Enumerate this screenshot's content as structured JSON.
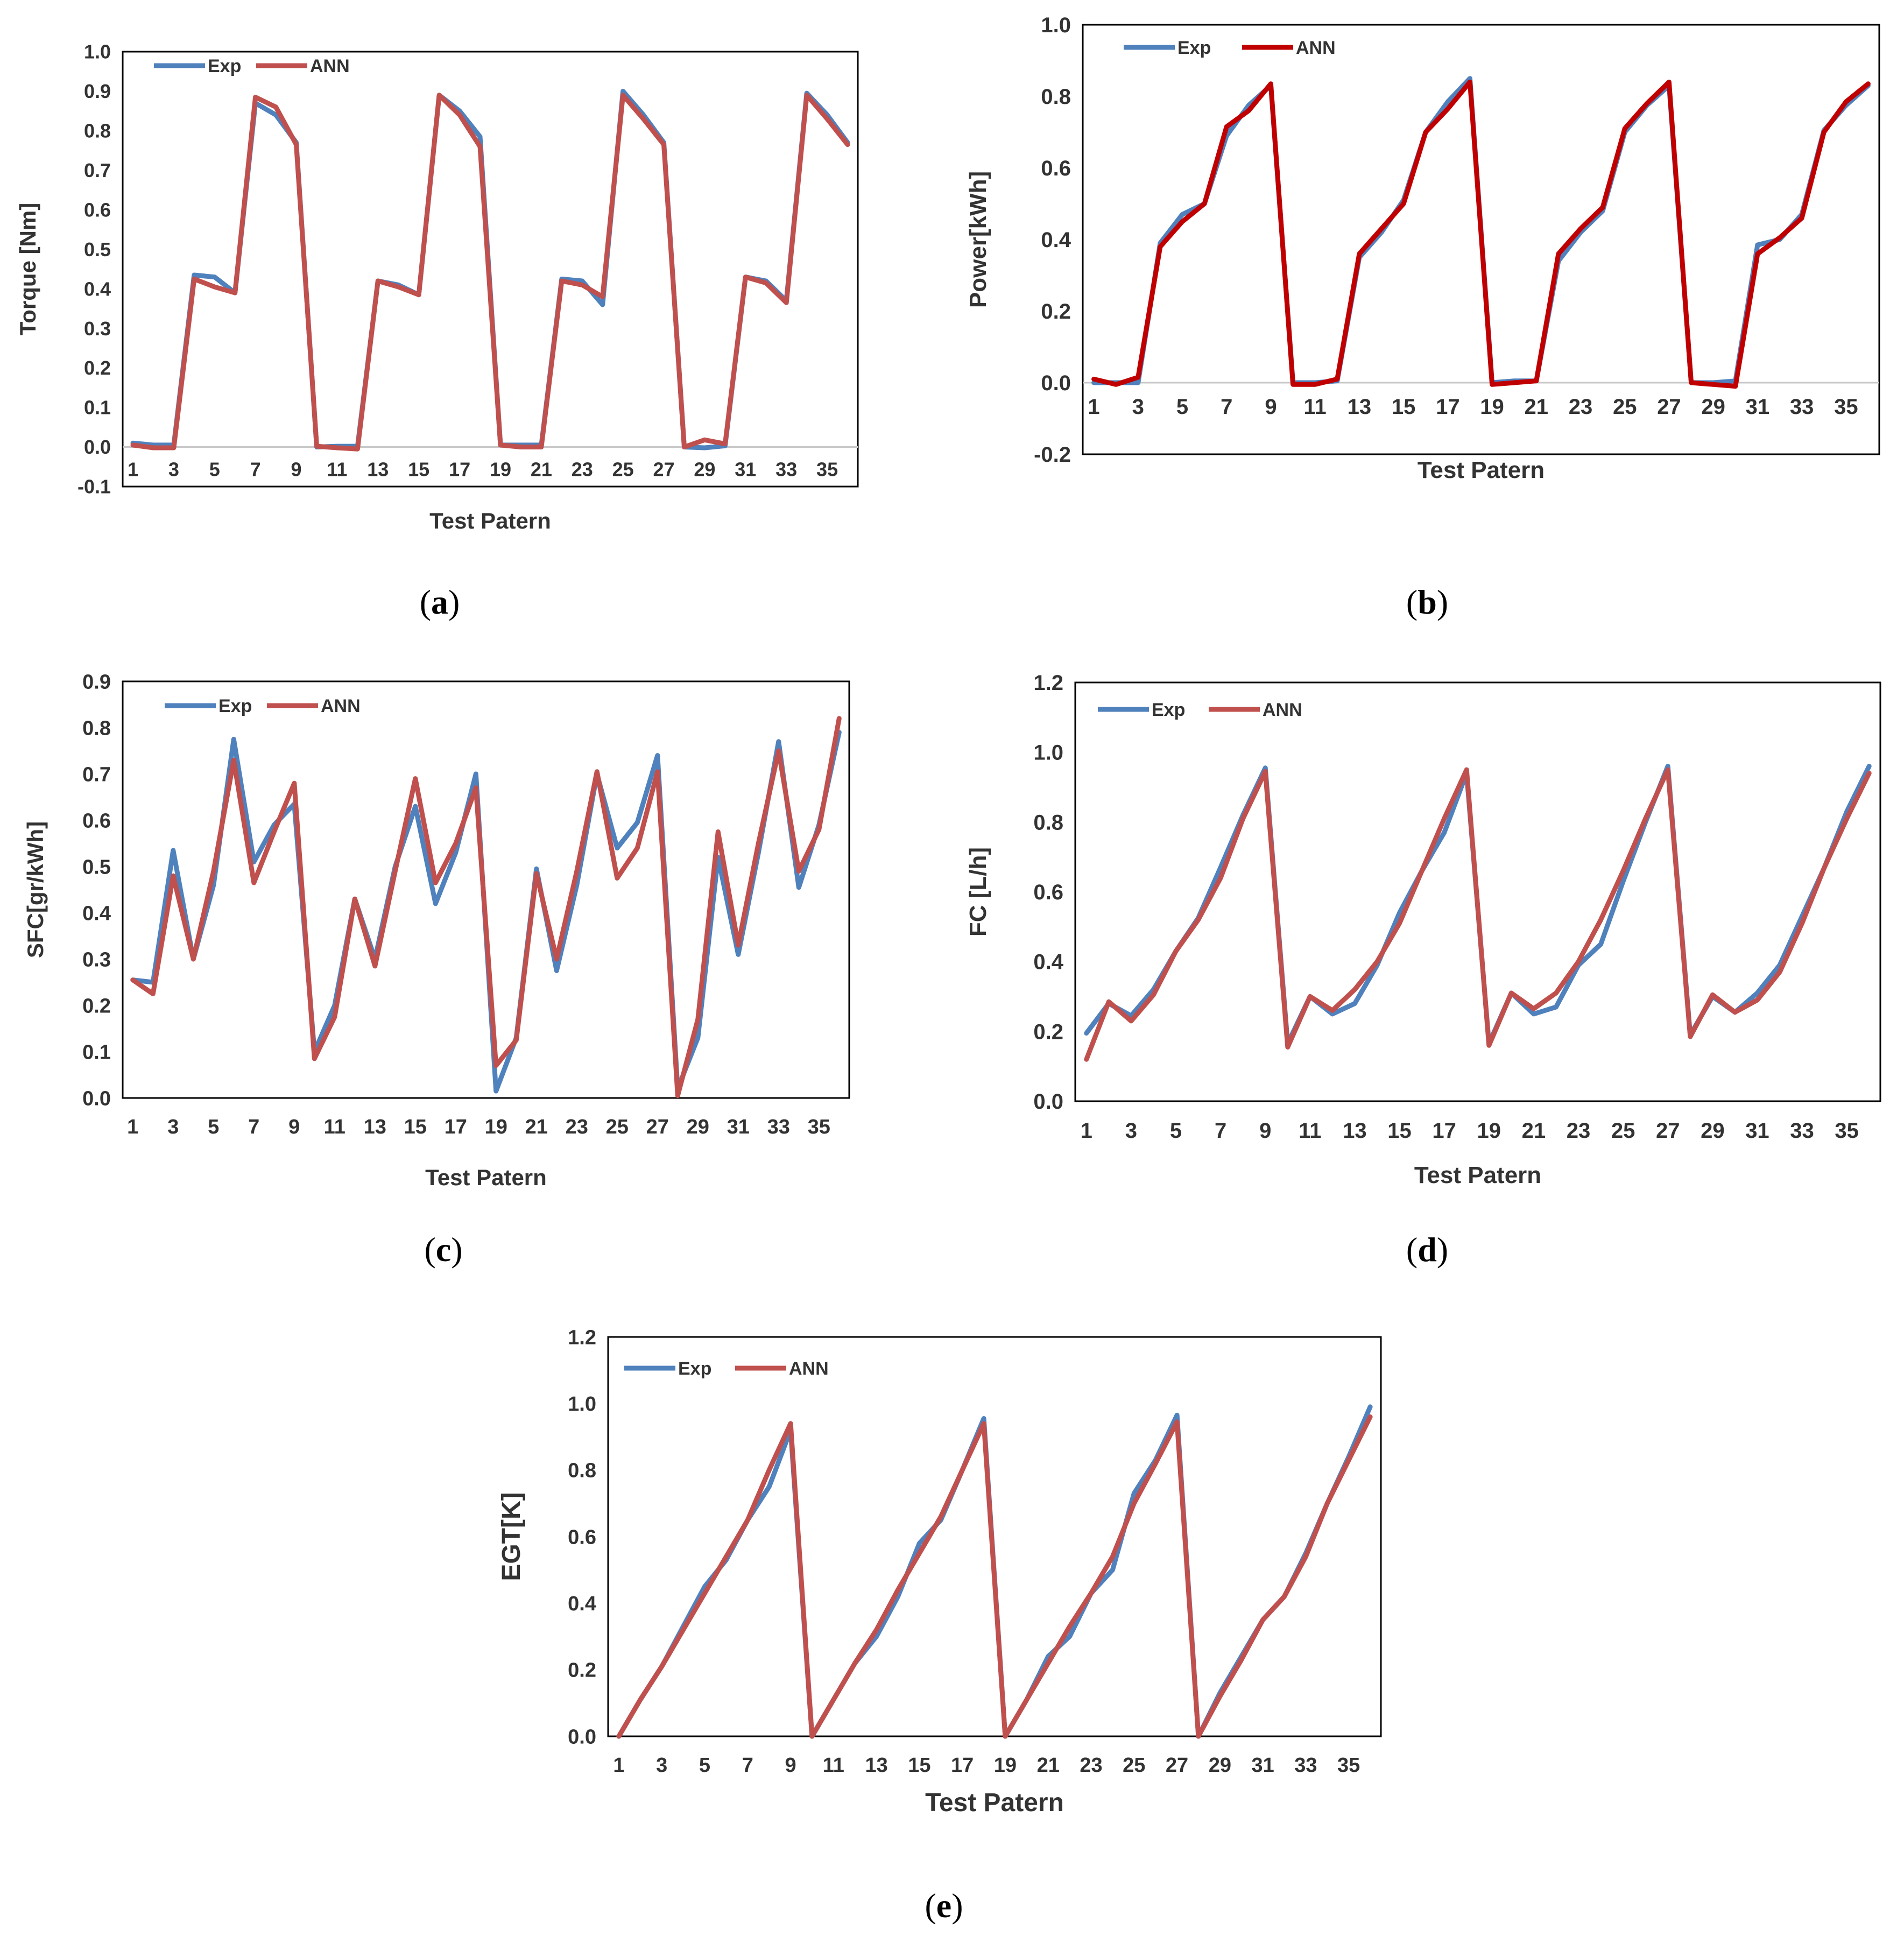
{
  "figure": {
    "x_values": [
      1,
      2,
      3,
      4,
      5,
      6,
      7,
      8,
      9,
      10,
      11,
      12,
      13,
      14,
      15,
      16,
      17,
      18,
      19,
      20,
      21,
      22,
      23,
      24,
      25,
      26,
      27,
      28,
      29,
      30,
      31,
      32,
      33,
      34,
      35,
      36
    ]
  },
  "chart_data": [
    {
      "id": "a",
      "type": "line",
      "panel_label": "(a)",
      "title": "",
      "xlabel": "Test Patern",
      "ylabel": "Torque [Nm]",
      "ylim": [
        -0.1,
        1.0
      ],
      "yticks": [
        "-0.1",
        "0.0",
        "0.1",
        "0.2",
        "0.3",
        "0.4",
        "0.5",
        "0.6",
        "0.7",
        "0.8",
        "0.9",
        "1.0"
      ],
      "xticks": [
        "1",
        "3",
        "5",
        "7",
        "9",
        "11",
        "13",
        "15",
        "17",
        "19",
        "21",
        "23",
        "25",
        "27",
        "29",
        "31",
        "33",
        "35"
      ],
      "legend": [
        "Exp",
        "ANN"
      ],
      "series": [
        {
          "name": "Exp",
          "color": "#4F81BD",
          "values": [
            0.01,
            0.005,
            0.005,
            0.435,
            0.43,
            0.39,
            0.87,
            0.84,
            0.77,
            0.0,
            0.002,
            0.002,
            0.42,
            0.41,
            0.385,
            0.89,
            0.85,
            0.785,
            0.005,
            0.005,
            0.005,
            0.425,
            0.42,
            0.36,
            0.9,
            0.84,
            0.77,
            0.0,
            -0.002,
            0.003,
            0.43,
            0.42,
            0.37,
            0.895,
            0.84,
            0.77
          ]
        },
        {
          "name": "ANN",
          "color": "#C0504D",
          "values": [
            0.005,
            -0.002,
            -0.002,
            0.425,
            0.405,
            0.39,
            0.885,
            0.86,
            0.765,
            0.002,
            -0.002,
            -0.005,
            0.42,
            0.405,
            0.385,
            0.89,
            0.84,
            0.76,
            0.005,
            0.0,
            0.0,
            0.42,
            0.41,
            0.38,
            0.89,
            0.83,
            0.765,
            0.0,
            0.018,
            0.008,
            0.43,
            0.415,
            0.365,
            0.89,
            0.83,
            0.765
          ]
        }
      ]
    },
    {
      "id": "b",
      "type": "line",
      "panel_label": "(b)",
      "title": "",
      "xlabel": "Test Patern",
      "ylabel": "Power[kWh]",
      "ylim": [
        -0.2,
        1.0
      ],
      "yticks": [
        "-0.2",
        "0.0",
        "0.2",
        "0.4",
        "0.6",
        "0.8",
        "1.0"
      ],
      "xticks": [
        "1",
        "3",
        "5",
        "7",
        "9",
        "11",
        "13",
        "15",
        "17",
        "19",
        "21",
        "23",
        "25",
        "27",
        "29",
        "31",
        "33",
        "35"
      ],
      "legend": [
        "Exp",
        "ANN"
      ],
      "series": [
        {
          "name": "Exp",
          "color": "#4F81BD",
          "values": [
            0.0,
            0.0,
            0.0,
            0.39,
            0.47,
            0.5,
            0.69,
            0.775,
            0.83,
            0.0,
            0.0,
            0.005,
            0.35,
            0.42,
            0.51,
            0.7,
            0.785,
            0.85,
            0.0,
            0.005,
            0.005,
            0.34,
            0.42,
            0.48,
            0.7,
            0.775,
            0.83,
            0.0,
            0.0,
            0.005,
            0.385,
            0.4,
            0.47,
            0.705,
            0.775,
            0.83
          ]
        },
        {
          "name": "ANN",
          "color": "#C00000",
          "values": [
            0.01,
            -0.005,
            0.015,
            0.38,
            0.45,
            0.5,
            0.715,
            0.76,
            0.835,
            -0.005,
            -0.005,
            0.01,
            0.36,
            0.43,
            0.5,
            0.7,
            0.765,
            0.84,
            -0.005,
            0.0,
            0.005,
            0.36,
            0.43,
            0.49,
            0.71,
            0.78,
            0.84,
            0.0,
            -0.005,
            -0.01,
            0.36,
            0.405,
            0.46,
            0.7,
            0.785,
            0.835
          ]
        }
      ]
    },
    {
      "id": "c",
      "type": "line",
      "panel_label": "(c)",
      "title": "",
      "xlabel": "Test Patern",
      "ylabel": "SFC[gr/kWh]",
      "ylim": [
        0.0,
        0.9
      ],
      "yticks": [
        "0.0",
        "0.1",
        "0.2",
        "0.3",
        "0.4",
        "0.5",
        "0.6",
        "0.7",
        "0.8",
        "0.9"
      ],
      "xticks": [
        "1",
        "3",
        "5",
        "7",
        "9",
        "11",
        "13",
        "15",
        "17",
        "19",
        "21",
        "23",
        "25",
        "27",
        "29",
        "31",
        "33",
        "35"
      ],
      "legend": [
        "Exp",
        "ANN"
      ],
      "series": [
        {
          "name": "Exp",
          "color": "#4F81BD",
          "values": [
            0.255,
            0.25,
            0.535,
            0.3,
            0.46,
            0.775,
            0.51,
            0.59,
            0.635,
            0.1,
            0.2,
            0.43,
            0.3,
            0.5,
            0.63,
            0.42,
            0.53,
            0.7,
            0.015,
            0.13,
            0.495,
            0.275,
            0.46,
            0.7,
            0.54,
            0.595,
            0.74,
            0.02,
            0.13,
            0.52,
            0.31,
            0.53,
            0.77,
            0.455,
            0.59,
            0.79
          ]
        },
        {
          "name": "ANN",
          "color": "#C0504D",
          "values": [
            0.255,
            0.225,
            0.48,
            0.3,
            0.49,
            0.73,
            0.465,
            0.575,
            0.68,
            0.085,
            0.175,
            0.43,
            0.285,
            0.49,
            0.69,
            0.465,
            0.55,
            0.67,
            0.07,
            0.125,
            0.485,
            0.3,
            0.49,
            0.705,
            0.475,
            0.54,
            0.705,
            0.005,
            0.17,
            0.575,
            0.33,
            0.55,
            0.75,
            0.49,
            0.58,
            0.82
          ]
        }
      ]
    },
    {
      "id": "d",
      "type": "line",
      "panel_label": "(d)",
      "title": "",
      "xlabel": "Test Patern",
      "ylabel": "FC [L/h]",
      "ylim": [
        0.0,
        1.2
      ],
      "yticks": [
        "0.0",
        "0.2",
        "0.4",
        "0.6",
        "0.8",
        "1.0",
        "1.2"
      ],
      "xticks": [
        "1",
        "3",
        "5",
        "7",
        "9",
        "11",
        "13",
        "15",
        "17",
        "19",
        "21",
        "23",
        "25",
        "27",
        "29",
        "31",
        "33",
        "35"
      ],
      "legend": [
        "Exp",
        "ANN"
      ],
      "series": [
        {
          "name": "Exp",
          "color": "#4F81BD",
          "values": [
            0.195,
            0.28,
            0.245,
            0.32,
            0.43,
            0.525,
            0.67,
            0.82,
            0.955,
            0.165,
            0.3,
            0.25,
            0.28,
            0.39,
            0.54,
            0.66,
            0.77,
            0.94,
            0.165,
            0.31,
            0.25,
            0.27,
            0.39,
            0.45,
            0.63,
            0.8,
            0.96,
            0.19,
            0.3,
            0.255,
            0.31,
            0.39,
            0.53,
            0.67,
            0.83,
            0.96
          ]
        },
        {
          "name": "ANN",
          "color": "#C0504D",
          "values": [
            0.12,
            0.285,
            0.23,
            0.305,
            0.43,
            0.52,
            0.64,
            0.81,
            0.945,
            0.155,
            0.3,
            0.26,
            0.32,
            0.4,
            0.51,
            0.66,
            0.81,
            0.95,
            0.16,
            0.31,
            0.265,
            0.31,
            0.4,
            0.52,
            0.66,
            0.81,
            0.95,
            0.185,
            0.305,
            0.255,
            0.29,
            0.37,
            0.51,
            0.67,
            0.81,
            0.94
          ]
        }
      ]
    },
    {
      "id": "e",
      "type": "line",
      "panel_label": "(e)",
      "title": "",
      "xlabel": "Test Patern",
      "ylabel": "EGT[K]",
      "ylim": [
        0.0,
        1.2
      ],
      "yticks": [
        "0.0",
        "0.2",
        "0.4",
        "0.6",
        "0.8",
        "1.0",
        "1.2"
      ],
      "xticks": [
        "1",
        "3",
        "5",
        "7",
        "9",
        "11",
        "13",
        "15",
        "17",
        "19",
        "21",
        "23",
        "25",
        "27",
        "29",
        "31",
        "33",
        "35"
      ],
      "legend": [
        "Exp",
        "ANN"
      ],
      "series": [
        {
          "name": "Exp",
          "color": "#4F81BD",
          "values": [
            0.0,
            0.11,
            0.21,
            0.33,
            0.45,
            0.53,
            0.65,
            0.75,
            0.92,
            0.0,
            0.11,
            0.22,
            0.3,
            0.42,
            0.58,
            0.65,
            0.8,
            0.955,
            0.0,
            0.11,
            0.24,
            0.3,
            0.43,
            0.5,
            0.73,
            0.83,
            0.965,
            0.0,
            0.13,
            0.24,
            0.35,
            0.42,
            0.55,
            0.7,
            0.84,
            0.99
          ]
        },
        {
          "name": "ANN",
          "color": "#C0504D",
          "values": [
            0.0,
            0.11,
            0.21,
            0.32,
            0.43,
            0.54,
            0.65,
            0.8,
            0.94,
            0.0,
            0.11,
            0.22,
            0.32,
            0.44,
            0.55,
            0.66,
            0.8,
            0.94,
            0.0,
            0.11,
            0.22,
            0.33,
            0.43,
            0.54,
            0.7,
            0.82,
            0.945,
            0.0,
            0.12,
            0.23,
            0.35,
            0.42,
            0.54,
            0.7,
            0.83,
            0.96
          ]
        }
      ]
    }
  ]
}
